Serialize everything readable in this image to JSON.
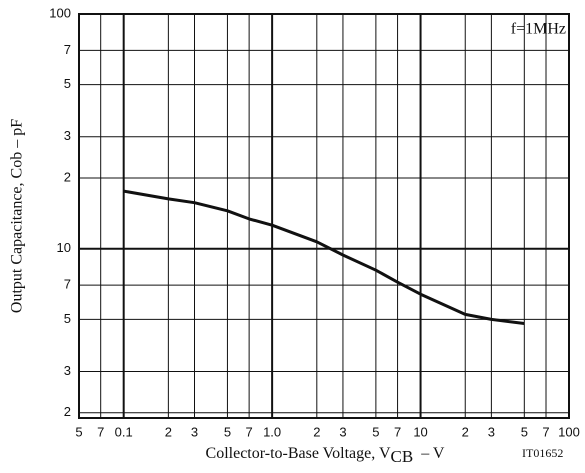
{
  "chart_data": {
    "type": "line",
    "x_label": {
      "text": "Collector-to-Base Voltage, V",
      "subscript": "CB",
      "unit": "– V"
    },
    "y_label": "Output Capacitance, Cob – pF",
    "annotation": "f=1MHz",
    "figure_code": "IT01652",
    "x_scale": "log",
    "y_scale": "log",
    "grid": true,
    "x": [
      0.1,
      0.2,
      0.3,
      0.5,
      0.7,
      1,
      2,
      3,
      5,
      7,
      10,
      20,
      30,
      50
    ],
    "series": [
      {
        "color": "#111111",
        "values": [
          17.6,
          16.3,
          15.7,
          14.5,
          13.4,
          12.6,
          10.7,
          9.4,
          8.1,
          7.2,
          6.4,
          5.25,
          5.0,
          4.8
        ]
      }
    ],
    "xlim": [
      0.05,
      100
    ],
    "xticks": [
      {
        "value": 0.05,
        "label": "5"
      },
      {
        "value": 0.07,
        "label": "7"
      },
      0.1,
      {
        "value": 0.2,
        "label": "2"
      },
      {
        "value": 0.3,
        "label": "3"
      },
      {
        "value": 0.5,
        "label": "5"
      },
      {
        "value": 0.7,
        "label": "7"
      },
      {
        "value": 1,
        "label": "1.0"
      },
      2,
      3,
      5,
      7,
      10,
      {
        "value": 20,
        "label": "2"
      },
      {
        "value": 30,
        "label": "3"
      },
      {
        "value": 50,
        "label": "5"
      },
      {
        "value": 70,
        "label": "7"
      },
      100
    ],
    "ylim": [
      1.9,
      100
    ],
    "yticks": [
      2,
      3,
      5,
      7,
      10,
      {
        "value": 20,
        "label": "2"
      },
      {
        "value": 30,
        "label": "3"
      },
      {
        "value": 50,
        "label": "5"
      },
      {
        "value": 70,
        "label": "7"
      },
      100
    ]
  }
}
